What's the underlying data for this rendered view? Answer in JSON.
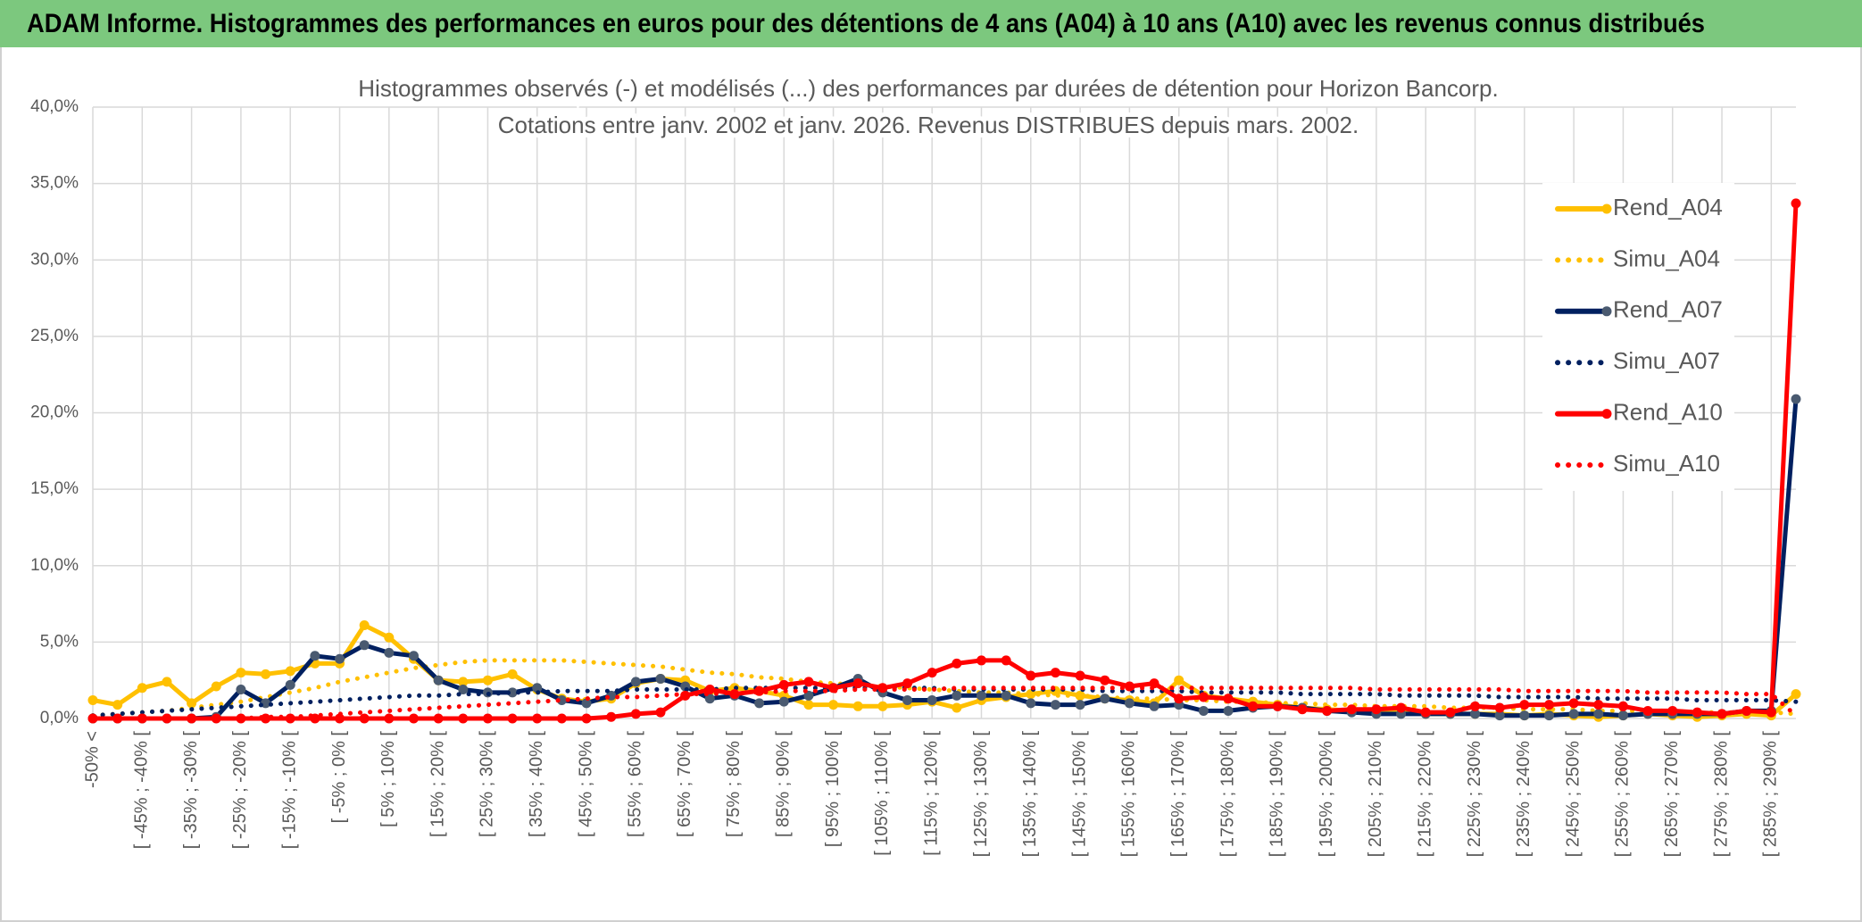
{
  "header": {
    "title": "ADAM Informe. Histogrammes des performances en euros pour des détentions de 4 ans (A04) à 10 ans (A10) avec les revenus connus distribués"
  },
  "chart_data": {
    "type": "line",
    "title": [
      "Histogrammes observés (-) et modélisés (...) des performances par durées de détention pour Horizon Bancorp.",
      "Cotations entre janv. 2002 et janv. 2026. Revenus DISTRIBUES depuis mars. 2002."
    ],
    "categories": [
      "-50% <",
      null,
      "[ -45% ; -40% [",
      null,
      "[ -35% ; -30% [",
      null,
      "[ -25% ; -20% [",
      null,
      "[ -15% ; -10% [",
      null,
      "[ -5% ; 0% [",
      null,
      "[ 5% ; 10% [",
      null,
      "[ 15% ; 20% [",
      null,
      "[ 25% ; 30% [",
      null,
      "[ 35% ; 40% [",
      null,
      "[ 45% ; 50% [",
      null,
      "[ 55% ; 60% [",
      null,
      "[ 65% ; 70% [",
      null,
      "[ 75% ; 80% [",
      null,
      "[ 85% ; 90% [",
      null,
      "[ 95% ; 100% [",
      null,
      "[ 105% ; 110% [",
      null,
      "[ 115% ; 120% [",
      null,
      "[ 125% ; 130% [",
      null,
      "[ 135% ; 140% [",
      null,
      "[ 145% ; 150% [",
      null,
      "[ 155% ; 160% [",
      null,
      "[ 165% ; 170% [",
      null,
      "[ 175% ; 180% [",
      null,
      "[ 185% ; 190% [",
      null,
      "[ 195% ; 200% [",
      null,
      "[ 205% ; 210% [",
      null,
      "[ 215% ; 220% [",
      null,
      "[ 225% ; 230% [",
      null,
      "[ 235% ; 240% [",
      null,
      "[ 245% ; 250% [",
      null,
      "[ 255% ; 260% [",
      null,
      "[ 265% ; 270% [",
      null,
      "[ 275% ; 280% [",
      null,
      "[ 285% ; 290% [",
      null
    ],
    "series": [
      {
        "name": "Rend_A04",
        "color": "#ffc000",
        "marker": "#ffc000",
        "line_style": "solid",
        "values": [
          1.2,
          0.9,
          2.0,
          2.4,
          1.0,
          2.1,
          3.0,
          2.9,
          3.1,
          3.6,
          3.6,
          6.1,
          5.3,
          3.9,
          2.5,
          2.4,
          2.5,
          2.9,
          1.9,
          1.3,
          1.1,
          1.3,
          2.3,
          2.6,
          2.5,
          1.8,
          2.0,
          1.8,
          1.5,
          0.9,
          0.9,
          0.8,
          0.8,
          0.9,
          1.1,
          0.7,
          1.2,
          1.4,
          1.6,
          1.8,
          1.5,
          1.3,
          1.2,
          1.0,
          2.5,
          1.5,
          1.3,
          1.1,
          0.9,
          0.7,
          0.6,
          0.5,
          0.4,
          0.4,
          0.3,
          0.3,
          0.3,
          0.3,
          0.2,
          0.3,
          0.2,
          0.1,
          0.2,
          0.3,
          0.2,
          0.1,
          0.2,
          0.3,
          0.2,
          1.6
        ]
      },
      {
        "name": "Simu_A04",
        "color": "#ffc000",
        "line_style": "dotted",
        "values": [
          0.2,
          0.3,
          0.4,
          0.5,
          0.7,
          0.9,
          1.1,
          1.4,
          1.7,
          2.0,
          2.4,
          2.7,
          3.0,
          3.3,
          3.5,
          3.7,
          3.8,
          3.8,
          3.8,
          3.8,
          3.7,
          3.6,
          3.5,
          3.4,
          3.2,
          3.0,
          2.9,
          2.7,
          2.6,
          2.4,
          2.3,
          2.2,
          2.1,
          2.0,
          1.9,
          1.8,
          1.7,
          1.7,
          1.6,
          1.5,
          1.5,
          1.4,
          1.3,
          1.3,
          1.2,
          1.2,
          1.1,
          1.1,
          1.0,
          1.0,
          0.9,
          0.9,
          0.8,
          0.8,
          0.8,
          0.7,
          0.7,
          0.7,
          0.6,
          0.6,
          0.6,
          0.5,
          0.5,
          0.5,
          0.5,
          0.4,
          0.4,
          0.4,
          0.4,
          0.3
        ]
      },
      {
        "name": "Rend_A07",
        "color": "#002060",
        "marker": "#4a5a70",
        "line_style": "solid",
        "values": [
          0,
          0,
          0,
          0,
          0,
          0.1,
          1.9,
          1.0,
          2.2,
          4.1,
          3.9,
          4.8,
          4.3,
          4.1,
          2.5,
          1.9,
          1.7,
          1.7,
          2.0,
          1.2,
          1.0,
          1.5,
          2.4,
          2.6,
          2.1,
          1.3,
          1.5,
          1.0,
          1.1,
          1.5,
          2.0,
          2.6,
          1.7,
          1.2,
          1.2,
          1.5,
          1.5,
          1.5,
          1.0,
          0.9,
          0.9,
          1.3,
          1.0,
          0.8,
          0.9,
          0.5,
          0.5,
          0.7,
          0.8,
          0.7,
          0.5,
          0.4,
          0.3,
          0.3,
          0.3,
          0.3,
          0.3,
          0.2,
          0.2,
          0.2,
          0.3,
          0.3,
          0.2,
          0.3,
          0.3,
          0.3,
          0.3,
          0.5,
          0.5,
          20.9
        ]
      },
      {
        "name": "Simu_A07",
        "color": "#002060",
        "line_style": "dotted",
        "values": [
          0.2,
          0.3,
          0.4,
          0.5,
          0.6,
          0.7,
          0.8,
          0.9,
          1.0,
          1.1,
          1.2,
          1.3,
          1.4,
          1.5,
          1.5,
          1.6,
          1.6,
          1.7,
          1.7,
          1.8,
          1.8,
          1.8,
          1.9,
          1.9,
          1.9,
          1.9,
          2.0,
          2.0,
          2.0,
          2.0,
          2.0,
          2.0,
          2.0,
          2.0,
          2.0,
          1.9,
          1.9,
          1.9,
          1.9,
          1.9,
          1.9,
          1.8,
          1.8,
          1.8,
          1.8,
          1.7,
          1.7,
          1.7,
          1.7,
          1.6,
          1.6,
          1.6,
          1.6,
          1.5,
          1.5,
          1.5,
          1.5,
          1.4,
          1.4,
          1.4,
          1.4,
          1.3,
          1.3,
          1.3,
          1.3,
          1.2,
          1.2,
          1.2,
          1.2,
          1.1
        ]
      },
      {
        "name": "Rend_A10",
        "color": "#ff0000",
        "marker": "#ff0000",
        "line_style": "solid",
        "values": [
          0,
          0,
          0,
          0,
          0,
          0,
          0,
          0,
          0,
          0,
          0,
          0,
          0,
          0,
          0,
          0,
          0,
          0,
          0,
          0,
          0,
          0.1,
          0.3,
          0.4,
          1.5,
          1.9,
          1.6,
          1.8,
          2.2,
          2.4,
          2.0,
          2.3,
          2.0,
          2.3,
          3.0,
          3.6,
          3.8,
          3.8,
          2.8,
          3.0,
          2.8,
          2.5,
          2.1,
          2.3,
          1.3,
          1.4,
          1.3,
          0.8,
          0.8,
          0.6,
          0.5,
          0.6,
          0.6,
          0.7,
          0.4,
          0.4,
          0.8,
          0.7,
          0.9,
          0.9,
          1.0,
          0.9,
          0.8,
          0.5,
          0.5,
          0.4,
          0.3,
          0.5,
          0.4,
          33.7
        ]
      },
      {
        "name": "Simu_A10",
        "color": "#ff0000",
        "line_style": "dotted",
        "values": [
          0,
          0,
          0,
          0,
          0,
          0,
          0,
          0.1,
          0.1,
          0.2,
          0.3,
          0.4,
          0.5,
          0.6,
          0.7,
          0.8,
          0.9,
          1.0,
          1.1,
          1.2,
          1.3,
          1.4,
          1.4,
          1.5,
          1.6,
          1.6,
          1.7,
          1.7,
          1.8,
          1.8,
          1.8,
          1.9,
          1.9,
          1.9,
          1.9,
          2.0,
          2.0,
          2.0,
          2.0,
          2.0,
          2.0,
          2.0,
          2.0,
          2.0,
          2.0,
          2.0,
          2.0,
          2.0,
          2.0,
          2.0,
          2.0,
          2.0,
          1.9,
          1.9,
          1.9,
          1.9,
          1.9,
          1.9,
          1.8,
          1.8,
          1.8,
          1.8,
          1.8,
          1.7,
          1.7,
          1.7,
          1.7,
          1.6,
          1.6,
          0.2
        ]
      }
    ],
    "ylim": [
      0,
      40
    ],
    "yticks": [
      {
        "value": 0,
        "label": "0,0%"
      },
      {
        "value": 5,
        "label": "5,0%"
      },
      {
        "value": 10,
        "label": "10,0%"
      },
      {
        "value": 15,
        "label": "15,0%"
      },
      {
        "value": 20,
        "label": "20,0%"
      },
      {
        "value": 25,
        "label": "25,0%"
      },
      {
        "value": 30,
        "label": "30,0%"
      },
      {
        "value": 35,
        "label": "35,0%"
      },
      {
        "value": 40,
        "label": "40,0%"
      }
    ],
    "grid": true,
    "legend": "right"
  }
}
